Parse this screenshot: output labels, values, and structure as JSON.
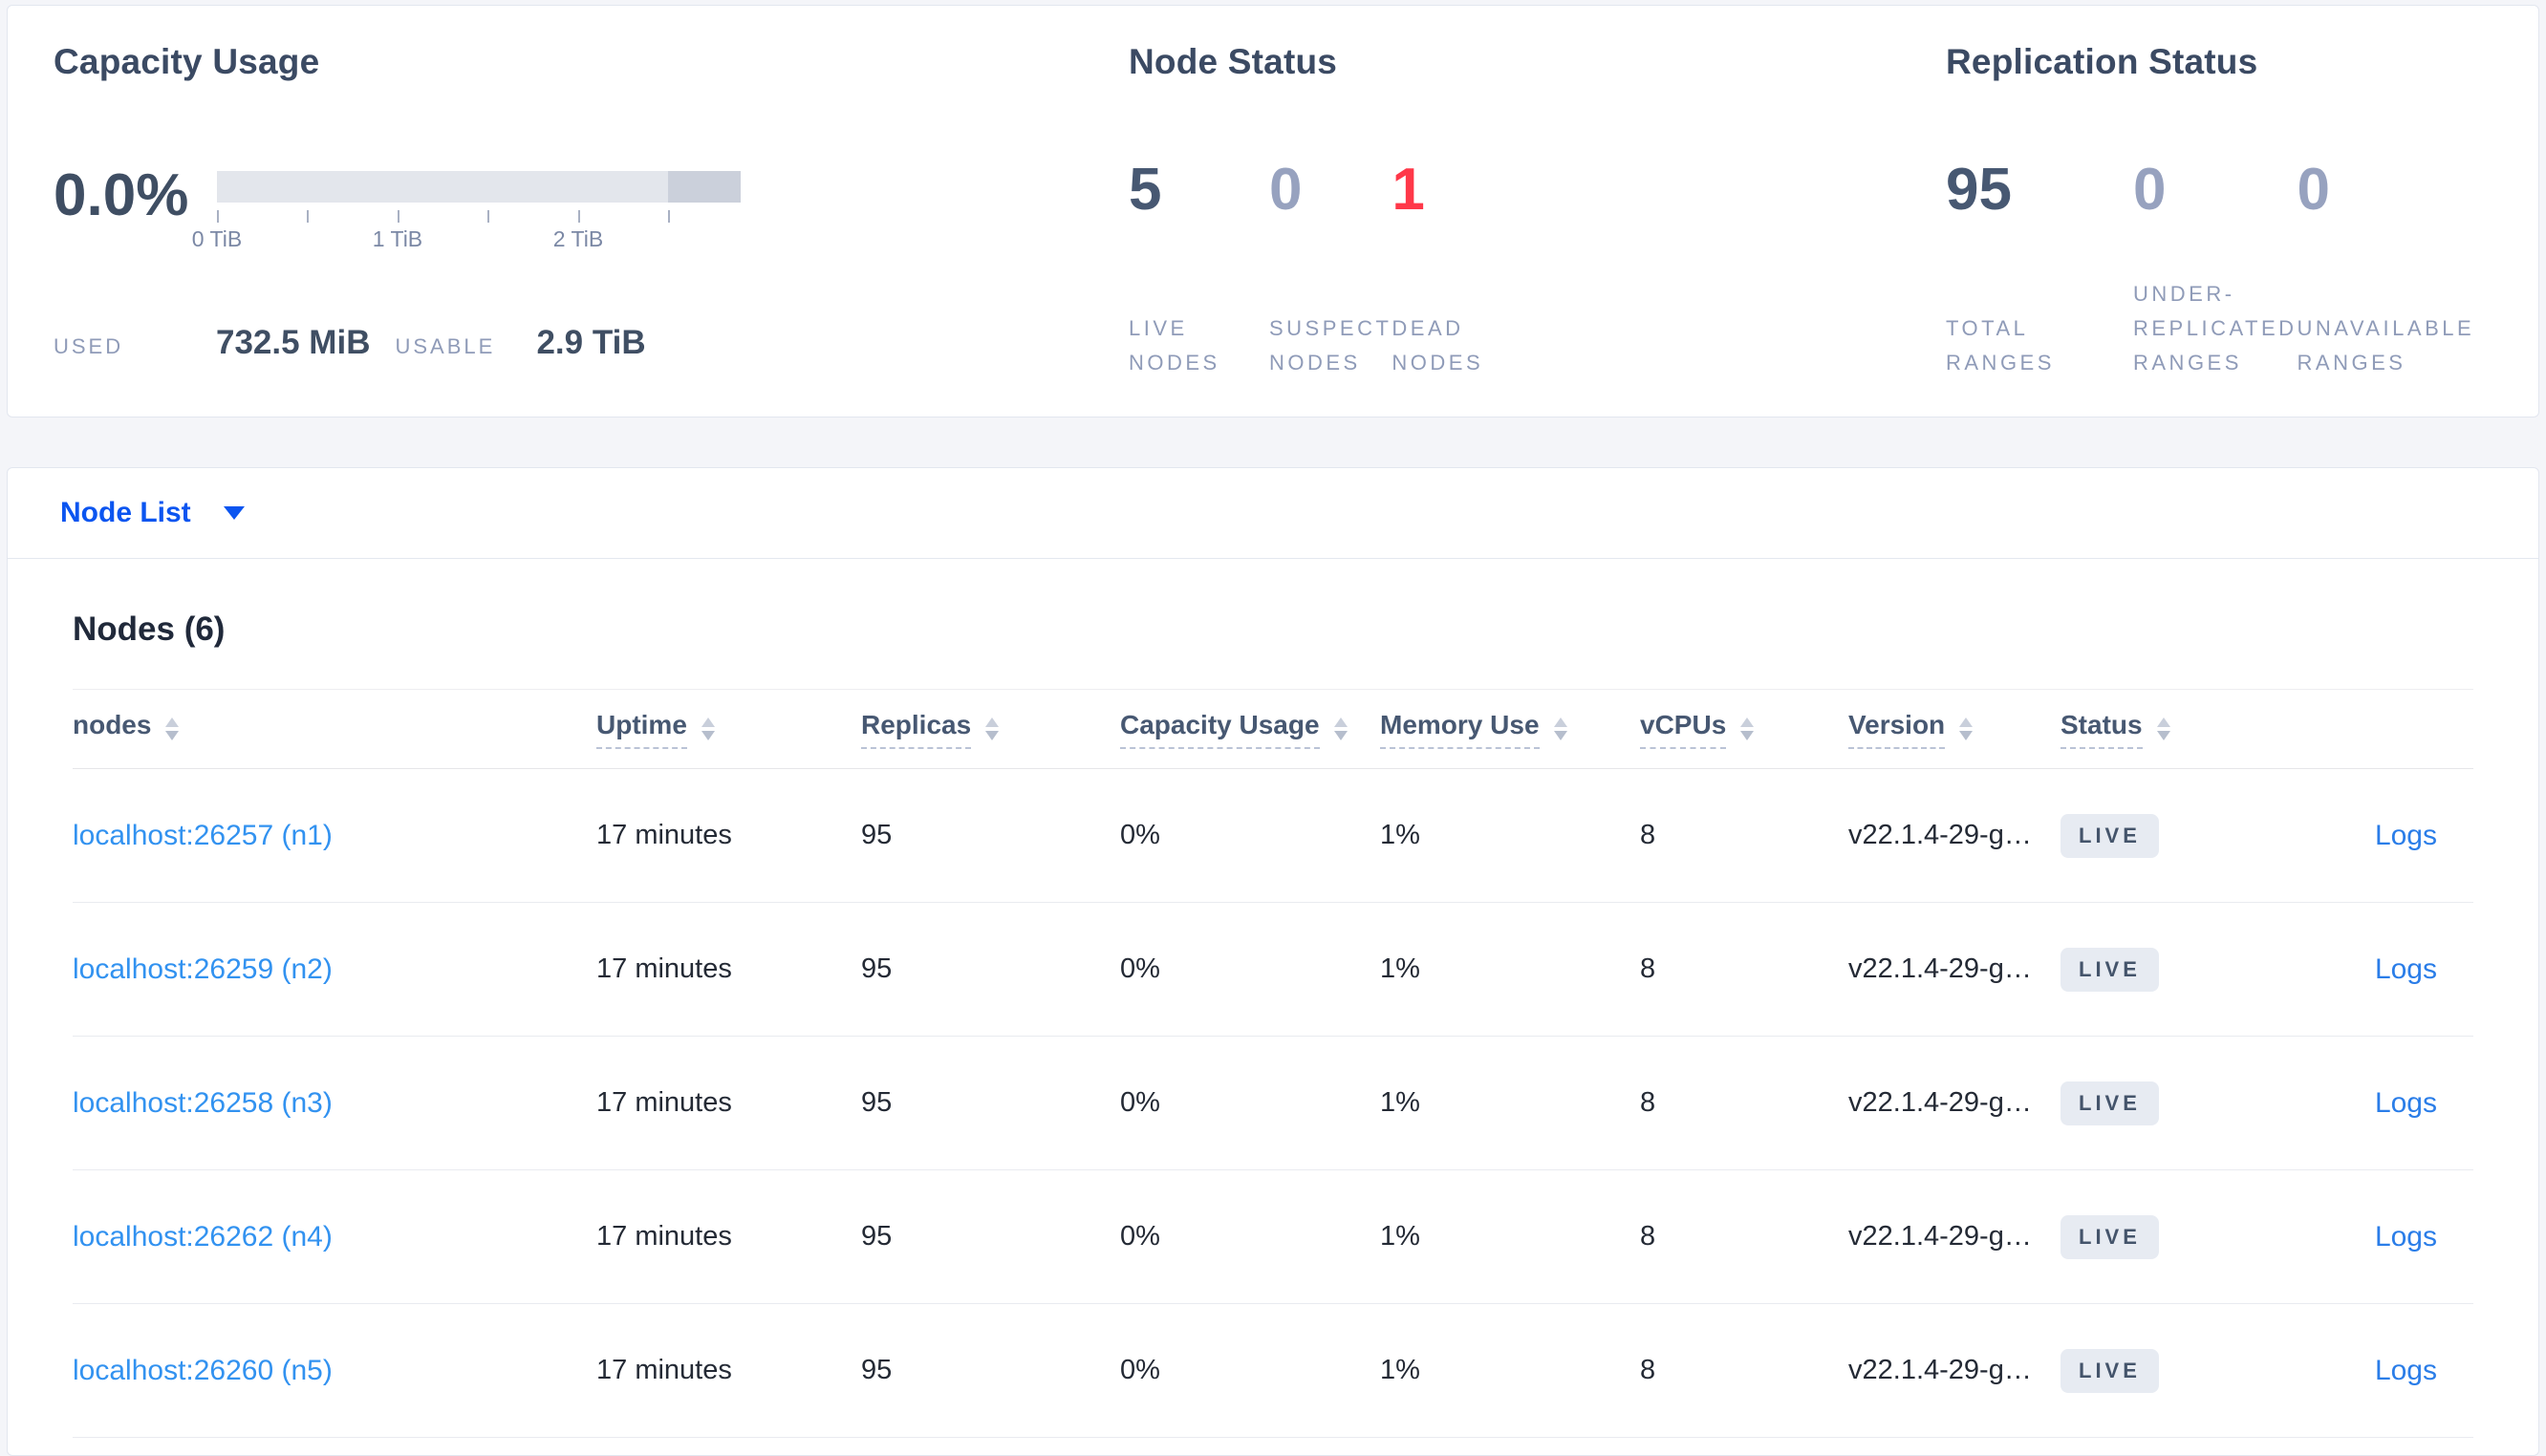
{
  "colors": {
    "page_bg": "#f4f5f9",
    "heading": "#3b4a63",
    "stat_dark": "#475872",
    "stat_muted": "#97a2bf",
    "stat_danger": "#ff3849",
    "label_muted": "#8f9bb8",
    "primary_link": "#0b55f0",
    "node_link": "#3292f0",
    "logs_link": "#2a7de8",
    "bar_light": "#e3e6ec",
    "bar_dark": "#cbd0db",
    "badge_bg": "#e7ebf2"
  },
  "overview": {
    "capacity": {
      "title": "Capacity Usage",
      "percent": "0.0%",
      "tick_labels": [
        "0 TiB",
        "1 TiB",
        "2 TiB"
      ],
      "used_label": "USED",
      "used_value": "732.5 MiB",
      "usable_label": "USABLE",
      "usable_value": "2.9 TiB"
    },
    "node_status": {
      "title": "Node Status",
      "stats": [
        {
          "value": "5",
          "color": "#475872",
          "label_lines": [
            "LIVE",
            "NODES"
          ]
        },
        {
          "value": "0",
          "color": "#97a2bf",
          "label_lines": [
            "SUSPECT",
            "NODES"
          ]
        },
        {
          "value": "1",
          "color": "#ff3849",
          "label_lines": [
            "DEAD",
            "NODES"
          ]
        }
      ]
    },
    "replication_status": {
      "title": "Replication Status",
      "stats": [
        {
          "value": "95",
          "color": "#475872",
          "label_lines": [
            "TOTAL",
            "RANGES"
          ]
        },
        {
          "value": "0",
          "color": "#97a2bf",
          "label_lines": [
            "UNDER-",
            "REPLICATED",
            "RANGES"
          ]
        },
        {
          "value": "0",
          "color": "#97a2bf",
          "label_lines": [
            "UNAVAILABLE",
            "RANGES"
          ]
        }
      ]
    }
  },
  "nav": {
    "dropdown_label": "Node List"
  },
  "nodes_table": {
    "heading": "Nodes (6)",
    "columns": [
      {
        "label": "nodes"
      },
      {
        "label": "Uptime"
      },
      {
        "label": "Replicas"
      },
      {
        "label": "Capacity Usage"
      },
      {
        "label": "Memory Use"
      },
      {
        "label": "vCPUs"
      },
      {
        "label": "Version"
      },
      {
        "label": "Status"
      }
    ],
    "rows": [
      {
        "node": "localhost:26257 (n1)",
        "uptime": "17 minutes",
        "replicas": "95",
        "capacity": "0%",
        "memory": "1%",
        "vcpus": "8",
        "version": "v22.1.4-29-g…",
        "status": "LIVE",
        "logs": "Logs"
      },
      {
        "node": "localhost:26259 (n2)",
        "uptime": "17 minutes",
        "replicas": "95",
        "capacity": "0%",
        "memory": "1%",
        "vcpus": "8",
        "version": "v22.1.4-29-g…",
        "status": "LIVE",
        "logs": "Logs"
      },
      {
        "node": "localhost:26258 (n3)",
        "uptime": "17 minutes",
        "replicas": "95",
        "capacity": "0%",
        "memory": "1%",
        "vcpus": "8",
        "version": "v22.1.4-29-g…",
        "status": "LIVE",
        "logs": "Logs"
      },
      {
        "node": "localhost:26262 (n4)",
        "uptime": "17 minutes",
        "replicas": "95",
        "capacity": "0%",
        "memory": "1%",
        "vcpus": "8",
        "version": "v22.1.4-29-g…",
        "status": "LIVE",
        "logs": "Logs"
      },
      {
        "node": "localhost:26260 (n5)",
        "uptime": "17 minutes",
        "replicas": "95",
        "capacity": "0%",
        "memory": "1%",
        "vcpus": "8",
        "version": "v22.1.4-29-g…",
        "status": "LIVE",
        "logs": "Logs"
      }
    ]
  }
}
